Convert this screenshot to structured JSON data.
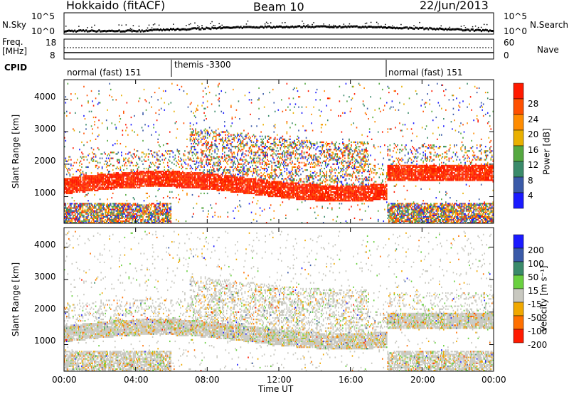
{
  "header": {
    "station": "Hokkaido (fitACF)",
    "beam": "Beam 10",
    "date": "22/Jun/2013"
  },
  "top_panel": {
    "left_label": "N.Sky",
    "right_label": "N.Search",
    "left_ticks": [
      "10^5",
      "10^0"
    ],
    "right_ticks": [
      "10^5",
      "10^0"
    ]
  },
  "freq_panel": {
    "left_label_1": "Freq.",
    "left_label_2": "[MHz]",
    "right_label": "Nave",
    "left_ticks": [
      "18",
      "8"
    ],
    "right_ticks": [
      "60",
      "0"
    ]
  },
  "cpid": {
    "label": "CPID",
    "segments": [
      {
        "name": "normal (fast) 151",
        "start_h": 0,
        "end_h": 6
      },
      {
        "name": "themis -3300",
        "start_h": 6,
        "end_h": 18
      },
      {
        "name": "normal (fast) 151",
        "start_h": 18,
        "end_h": 24
      }
    ]
  },
  "chart_data": [
    {
      "type": "heatmap",
      "panel": "power",
      "ylabel": "Slant Range [km]",
      "xlabel": "",
      "ylim": [
        180,
        4600
      ],
      "yticks": [
        "1000",
        "2000",
        "3000",
        "4000"
      ],
      "colorbar": {
        "label": "Power [dB]",
        "ticks": [
          "4",
          "8",
          "12",
          "16",
          "20",
          "24",
          "28"
        ],
        "colors": [
          "#1a1aff",
          "#3a5aa8",
          "#3a8a6a",
          "#55a840",
          "#e9b000",
          "#ff8c00",
          "#ff5000",
          "#ff1a00"
        ]
      }
    },
    {
      "type": "heatmap",
      "panel": "velocity",
      "ylabel": "Slant Range [km]",
      "xlabel": "Time UT",
      "ylim": [
        180,
        4600
      ],
      "yticks": [
        "1000",
        "2000",
        "3000",
        "4000"
      ],
      "xticks": [
        "00:00",
        "04:00",
        "08:00",
        "12:00",
        "16:00",
        "20:00",
        "00:00"
      ],
      "colorbar": {
        "label": "Velocity [m s⁻¹]",
        "ticks": [
          "200",
          "100",
          "50",
          "15",
          "-15",
          "-50",
          "-100",
          "-200"
        ],
        "colors": [
          "#1a1aff",
          "#3a5aa8",
          "#3a8a6a",
          "#6ad040",
          "#c8c8c0",
          "#f0a800",
          "#ff7000",
          "#ff1a00"
        ]
      }
    }
  ]
}
